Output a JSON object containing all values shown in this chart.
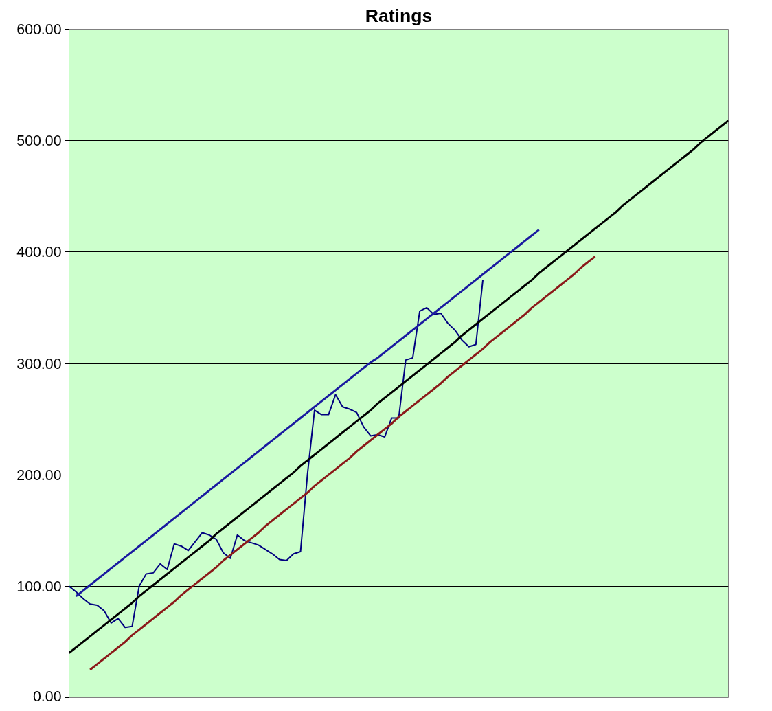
{
  "chart_data": {
    "type": "line",
    "title": "Ratings",
    "categories": [
      null,
      null,
      null,
      null,
      null,
      null,
      null,
      null,
      null,
      null,
      null,
      null,
      null,
      null,
      null,
      null,
      null,
      null,
      null,
      null,
      null,
      null,
      null,
      null,
      null,
      null,
      null,
      null,
      null,
      null,
      null,
      null,
      null,
      null,
      null,
      null,
      null,
      null,
      null,
      null,
      null,
      null,
      null,
      null,
      null,
      null,
      null,
      null,
      null,
      null,
      null,
      null,
      null,
      null,
      null,
      null,
      null,
      null,
      null,
      null,
      null,
      null,
      null,
      null,
      null,
      null,
      null,
      null,
      null,
      null,
      null,
      null,
      null,
      null,
      null,
      null,
      null,
      null,
      null,
      null,
      null,
      null,
      null,
      null,
      null,
      null,
      null,
      null,
      null,
      null,
      null,
      null,
      null,
      null,
      null
    ],
    "ylim": [
      0,
      600
    ],
    "yticks": [
      {
        "value": 0,
        "label": "0.00"
      },
      {
        "value": 100,
        "label": "100.00"
      },
      {
        "value": 200,
        "label": "200.00"
      },
      {
        "value": 300,
        "label": "300.00"
      },
      {
        "value": 400,
        "label": "400.00"
      },
      {
        "value": 500,
        "label": "500.00"
      },
      {
        "value": 600,
        "label": "600.00"
      }
    ],
    "tick_labels": "y",
    "grid": "y",
    "marker": "none",
    "line_style": "solid",
    "series": [
      {
        "color": "#000080",
        "values": [
          100,
          95,
          89,
          84,
          83,
          78,
          67,
          71,
          63,
          64,
          100,
          111,
          112,
          120,
          115,
          138,
          136,
          132,
          140,
          148,
          146,
          142,
          130,
          125,
          146,
          141,
          139,
          137,
          133,
          129,
          124,
          123,
          129,
          131,
          201,
          258,
          254,
          254,
          272,
          261,
          259,
          256,
          243,
          235,
          236,
          234,
          251,
          251,
          303,
          305,
          347,
          350,
          344,
          345,
          336,
          330,
          321,
          315,
          317,
          375,
          null,
          null,
          null,
          null,
          null,
          null,
          null,
          null,
          null,
          null,
          null,
          null,
          null,
          null,
          null,
          null,
          null,
          null,
          null,
          null,
          null,
          null,
          null,
          null,
          null,
          null,
          null,
          null,
          null,
          null,
          null,
          null,
          null,
          null,
          null
        ]
      },
      {
        "color": "#1a1aa0",
        "values": [
          null,
          91,
          96,
          101,
          106,
          111,
          116,
          121,
          126,
          131,
          136,
          141,
          146,
          151,
          156,
          161,
          166,
          171,
          176,
          181,
          186,
          191,
          196,
          201,
          206,
          211,
          216,
          221,
          226,
          231,
          236,
          241,
          246,
          251,
          256,
          261,
          266,
          271,
          276,
          281,
          286,
          291,
          296,
          301,
          305,
          310,
          315,
          320,
          325,
          330,
          335,
          340,
          345,
          350,
          355,
          360,
          365,
          370,
          375,
          380,
          385,
          390,
          395,
          400,
          405,
          410,
          415,
          420,
          null,
          null,
          null,
          null,
          null,
          null,
          null,
          null,
          null,
          null,
          null,
          null,
          null,
          null,
          null,
          null,
          null,
          null,
          null,
          null,
          null,
          null,
          null,
          null,
          null,
          null,
          null
        ]
      },
      {
        "color": "#000000",
        "values": [
          40,
          45,
          50,
          55,
          60,
          65,
          70,
          75,
          80,
          85,
          91,
          96,
          101,
          106,
          111,
          116,
          121,
          126,
          131,
          136,
          141,
          147,
          152,
          157,
          162,
          167,
          172,
          177,
          182,
          187,
          192,
          197,
          202,
          208,
          213,
          218,
          223,
          228,
          233,
          238,
          243,
          248,
          253,
          258,
          264,
          269,
          274,
          279,
          284,
          289,
          294,
          299,
          304,
          309,
          314,
          319,
          325,
          330,
          335,
          340,
          345,
          350,
          355,
          360,
          365,
          370,
          375,
          381,
          386,
          391,
          396,
          401,
          406,
          411,
          416,
          421,
          426,
          431,
          436,
          442,
          447,
          452,
          457,
          462,
          467,
          472,
          477,
          482,
          487,
          492,
          498,
          503,
          508,
          513,
          518
        ]
      },
      {
        "color": "#8b1a1a",
        "values": [
          null,
          null,
          null,
          25,
          30,
          35,
          40,
          45,
          50,
          56,
          61,
          66,
          71,
          76,
          81,
          86,
          92,
          97,
          102,
          107,
          112,
          117,
          123,
          128,
          133,
          138,
          143,
          148,
          154,
          159,
          164,
          169,
          174,
          179,
          184,
          190,
          195,
          200,
          205,
          210,
          215,
          221,
          226,
          231,
          236,
          241,
          246,
          252,
          257,
          262,
          267,
          272,
          277,
          282,
          288,
          293,
          298,
          303,
          308,
          313,
          319,
          324,
          329,
          334,
          339,
          344,
          350,
          355,
          360,
          365,
          370,
          375,
          380,
          386,
          391,
          396,
          null,
          null,
          null,
          null,
          null,
          null,
          null,
          null,
          null,
          null,
          null,
          null,
          null,
          null,
          null,
          null,
          null,
          null,
          null
        ]
      }
    ]
  }
}
